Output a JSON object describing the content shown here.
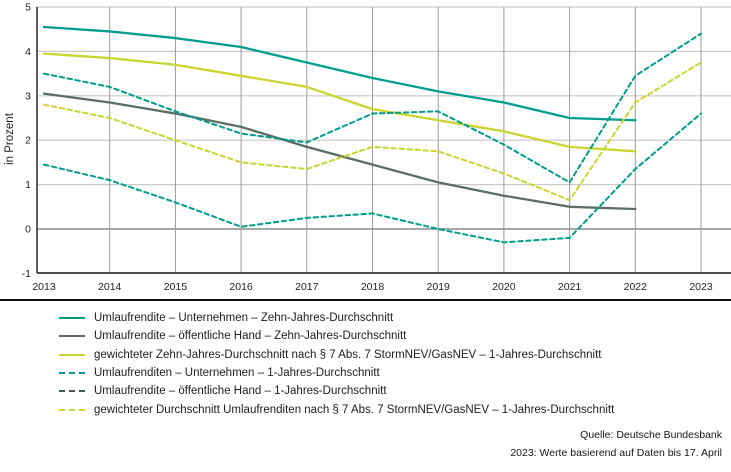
{
  "chart_data": {
    "type": "line",
    "title": "",
    "ylabel": "in Prozent",
    "xlabel": "",
    "x": [
      "2013",
      "2014",
      "2015",
      "2016",
      "2017",
      "2018",
      "2019",
      "2020",
      "2021",
      "2022",
      "2023"
    ],
    "ylim": [
      -1,
      5
    ],
    "yticks": [
      5,
      4,
      3,
      2,
      1,
      0,
      -1
    ],
    "grid": true,
    "legend_position": "below",
    "series": [
      {
        "id": "unternehmen-10j",
        "name": "Umlaufrendite – Unternehmen – Zehn-Jahres-Durchschnitt",
        "dash": false,
        "legend_color": "#009d8c",
        "line_color": "#009d8c",
        "values": [
          4.55,
          4.45,
          4.3,
          4.1,
          3.75,
          3.4,
          3.1,
          2.85,
          2.5,
          2.45,
          null
        ]
      },
      {
        "id": "oeffentliche-hand-10j",
        "name": "Umlaufrendite – öffentliche Hand – Zehn-Jahres-Durchschnitt",
        "dash": false,
        "legend_color": "#5e6c67",
        "line_color": "#5e6c67",
        "values": [
          3.05,
          2.85,
          2.6,
          2.3,
          1.85,
          1.45,
          1.05,
          0.75,
          0.5,
          0.45,
          null
        ]
      },
      {
        "id": "gewichtet-10j",
        "name": "gewichteter Zehn-Jahres-Durchschnitt nach § 7 Abs. 7 StormNEV/GasNEV – 1-Jahres-Durchschnitt",
        "dash": false,
        "legend_color": "#c8d62f",
        "line_color": "#c8d62f",
        "values": [
          3.95,
          3.85,
          3.7,
          3.45,
          3.2,
          2.7,
          2.45,
          2.2,
          1.85,
          1.75,
          null
        ]
      },
      {
        "id": "unternehmen-1j",
        "name": "Umlaufrenditen – Unternehmen – 1-Jahres-Durchschnitt",
        "dash": true,
        "legend_color": "#009d8c",
        "line_color": "#009d8c",
        "values": [
          3.5,
          3.2,
          2.65,
          2.15,
          1.95,
          2.6,
          2.65,
          1.9,
          1.05,
          3.45,
          4.4
        ]
      },
      {
        "id": "oeffentliche-hand-1j",
        "name": "Umlaufrendite – öffentliche Hand – 1-Jahres-Durchschnitt",
        "dash": true,
        "legend_color": "#47574f",
        "line_color": "#009d8c",
        "values": [
          1.45,
          1.1,
          0.6,
          0.05,
          0.25,
          0.35,
          0.0,
          -0.3,
          -0.2,
          1.35,
          2.6
        ]
      },
      {
        "id": "gewichtet-1j",
        "name": "gewichteter Durchschnitt Umlaufrenditen nach § 7 Abs. 7 StormNEV/GasNEV – 1-Jahres-Durchschnitt",
        "dash": true,
        "legend_color": "#c8d62f",
        "line_color": "#c8d62f",
        "values": [
          2.8,
          2.5,
          2.0,
          1.5,
          1.35,
          1.85,
          1.75,
          1.25,
          0.65,
          2.85,
          3.75
        ]
      }
    ],
    "source_lines": [
      "Quelle: Deutsche Bundesbank",
      "2023: Werte basierend auf Daten bis 17. April"
    ]
  },
  "colors": {
    "grid_light": "#c9c9c9",
    "grid_vertical": "#9a9a9a",
    "zero_line": "#8a8a8a",
    "axis": "#343434",
    "text": "#1d1d1d"
  }
}
